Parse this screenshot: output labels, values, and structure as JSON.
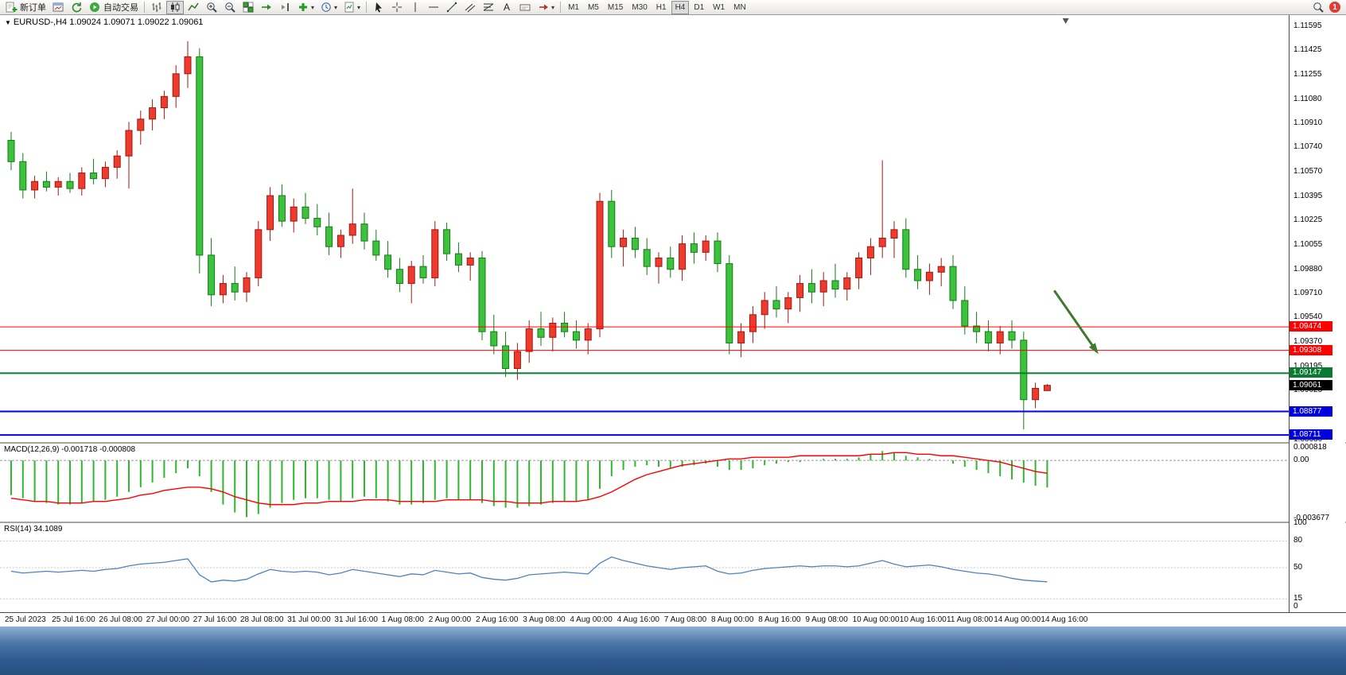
{
  "toolbar": {
    "new_order_label": "新订单",
    "autotrading_label": "自动交易",
    "timeframes": [
      "M1",
      "M5",
      "M15",
      "M30",
      "H1",
      "H4",
      "D1",
      "W1",
      "MN"
    ],
    "active_timeframe": "H4",
    "notification_badge": "1"
  },
  "icons": {
    "symbol_marker": "▼",
    "dropdown_caret": "▾"
  },
  "chart_data": [
    {
      "type": "candlestick",
      "title": "EURUSD-,H4 1.09024 1.09071 1.09022 1.09061",
      "symbol": "EURUSD-",
      "timeframe": "H4",
      "current": {
        "open": 1.09024,
        "high": 1.09071,
        "low": 1.09022,
        "close": 1.09061
      },
      "start_time": "25 Jul 2023 00:00",
      "bar_interval_hours": 4,
      "bull_color": "#ef3a2e",
      "bull_border": "#9e1a10",
      "bear_color": "#3cc23c",
      "bear_border": "#157a15",
      "ylim": [
        1.08661,
        1.11674
      ],
      "y_ticks": [
        "1.11595",
        "1.11425",
        "1.11255",
        "1.11080",
        "1.10910",
        "1.10740",
        "1.10570",
        "1.10395",
        "1.10225",
        "1.10055",
        "1.09880",
        "1.09710",
        "1.09540",
        "1.09370",
        "1.09195",
        "1.09025",
        "1.08855",
        "1.08680"
      ],
      "x_ticks": [
        "25 Jul 2023",
        "25 Jul 16:00",
        "26 Jul 08:00",
        "27 Jul 00:00",
        "27 Jul 16:00",
        "28 Jul 08:00",
        "31 Jul 00:00",
        "31 Jul 16:00",
        "1 Aug 08:00",
        "2 Aug 00:00",
        "2 Aug 16:00",
        "3 Aug 08:00",
        "4 Aug 00:00",
        "4 Aug 16:00",
        "7 Aug 08:00",
        "8 Aug 00:00",
        "8 Aug 16:00",
        "9 Aug 08:00",
        "10 Aug 00:00",
        "10 Aug 16:00",
        "11 Aug 08:00",
        "14 Aug 00:00",
        "14 Aug 16:00"
      ],
      "candles": [
        [
          1.1079,
          1.1085,
          1.1058,
          1.1064
        ],
        [
          1.1064,
          1.107,
          1.1038,
          1.1044
        ],
        [
          1.1044,
          1.1054,
          1.1038,
          1.105
        ],
        [
          1.105,
          1.1057,
          1.1043,
          1.1046
        ],
        [
          1.1046,
          1.1053,
          1.104,
          1.105
        ],
        [
          1.105,
          1.1056,
          1.1042,
          1.1045
        ],
        [
          1.1045,
          1.106,
          1.104,
          1.1056
        ],
        [
          1.1056,
          1.1066,
          1.1048,
          1.1052
        ],
        [
          1.1052,
          1.1064,
          1.1046,
          1.106
        ],
        [
          1.106,
          1.1072,
          1.1052,
          1.1068
        ],
        [
          1.1068,
          1.1092,
          1.1045,
          1.1086
        ],
        [
          1.1086,
          1.11,
          1.1076,
          1.1094
        ],
        [
          1.1094,
          1.1108,
          1.1086,
          1.1102
        ],
        [
          1.1102,
          1.1114,
          1.1094,
          1.111
        ],
        [
          1.111,
          1.1132,
          1.1102,
          1.1126
        ],
        [
          1.1126,
          1.1149,
          1.1116,
          1.1138
        ],
        [
          1.1138,
          1.1144,
          1.0985,
          1.0998
        ],
        [
          1.0998,
          1.101,
          1.0962,
          1.097
        ],
        [
          1.097,
          1.0984,
          1.0964,
          1.0978
        ],
        [
          1.0978,
          1.099,
          1.0966,
          1.0972
        ],
        [
          1.0972,
          1.0986,
          1.0965,
          1.0982
        ],
        [
          1.0982,
          1.1022,
          1.0976,
          1.1016
        ],
        [
          1.1016,
          1.1046,
          1.1008,
          1.104
        ],
        [
          1.104,
          1.1048,
          1.1018,
          1.1022
        ],
        [
          1.1022,
          1.1038,
          1.1014,
          1.1032
        ],
        [
          1.1032,
          1.1042,
          1.102,
          1.1024
        ],
        [
          1.1024,
          1.1034,
          1.1012,
          1.1018
        ],
        [
          1.1018,
          1.1028,
          1.0998,
          1.1004
        ],
        [
          1.1004,
          1.1016,
          1.0996,
          1.1012
        ],
        [
          1.1012,
          1.1045,
          1.1006,
          1.102
        ],
        [
          1.102,
          1.1028,
          1.1002,
          1.1008
        ],
        [
          1.1008,
          1.1016,
          1.0994,
          1.0998
        ],
        [
          1.0998,
          1.1008,
          1.0982,
          1.0988
        ],
        [
          1.0988,
          1.0996,
          1.0972,
          1.0978
        ],
        [
          1.0978,
          1.0994,
          1.0964,
          1.099
        ],
        [
          1.099,
          1.0998,
          1.0978,
          1.0982
        ],
        [
          1.0982,
          1.1022,
          1.0976,
          1.1016
        ],
        [
          1.1016,
          1.1021,
          1.0994,
          1.0999
        ],
        [
          1.0999,
          1.1007,
          1.0986,
          1.0991
        ],
        [
          1.0991,
          1.1,
          1.098,
          1.0996
        ],
        [
          1.0996,
          1.1001,
          1.0938,
          1.0944
        ],
        [
          1.0944,
          1.0956,
          1.0928,
          1.0934
        ],
        [
          1.0934,
          1.0944,
          1.0912,
          1.0918
        ],
        [
          1.0918,
          1.0936,
          1.091,
          1.093
        ],
        [
          1.093,
          1.0952,
          1.0922,
          1.0946
        ],
        [
          1.0946,
          1.0958,
          1.0934,
          1.094
        ],
        [
          1.094,
          1.0954,
          1.093,
          1.095
        ],
        [
          1.095,
          1.0958,
          1.094,
          1.0944
        ],
        [
          1.0944,
          1.0952,
          1.0932,
          1.0938
        ],
        [
          1.0938,
          1.095,
          1.0928,
          1.0946
        ],
        [
          1.0946,
          1.1042,
          1.094,
          1.1036
        ],
        [
          1.1036,
          1.1044,
          1.0996,
          1.1004
        ],
        [
          1.1004,
          1.1016,
          1.099,
          1.101
        ],
        [
          1.101,
          1.1018,
          1.0996,
          1.1002
        ],
        [
          1.1002,
          1.101,
          1.0984,
          1.099
        ],
        [
          1.099,
          1.1,
          1.0978,
          1.0996
        ],
        [
          1.0996,
          1.1004,
          1.0982,
          1.0988
        ],
        [
          1.0988,
          1.1012,
          1.098,
          1.1006
        ],
        [
          1.1006,
          1.1014,
          1.0992,
          1.1
        ],
        [
          1.1,
          1.1012,
          1.0994,
          1.1008
        ],
        [
          1.1008,
          1.1014,
          1.0986,
          1.0992
        ],
        [
          1.0992,
          1.0998,
          1.0928,
          1.0936
        ],
        [
          1.0936,
          1.095,
          1.0926,
          1.0944
        ],
        [
          1.0944,
          1.0962,
          1.0936,
          1.0956
        ],
        [
          1.0956,
          1.0972,
          1.0946,
          1.0966
        ],
        [
          1.0966,
          1.0976,
          1.0954,
          1.096
        ],
        [
          1.096,
          1.0972,
          1.095,
          1.0968
        ],
        [
          1.0968,
          1.0984,
          1.0958,
          1.0978
        ],
        [
          1.0978,
          1.0988,
          1.0964,
          1.0972
        ],
        [
          1.0972,
          1.0986,
          1.0962,
          1.098
        ],
        [
          1.098,
          1.0992,
          1.0968,
          1.0974
        ],
        [
          1.0974,
          1.0986,
          1.0966,
          1.0982
        ],
        [
          1.0982,
          1.1,
          1.0974,
          1.0996
        ],
        [
          1.0996,
          1.101,
          1.0984,
          1.1004
        ],
        [
          1.1004,
          1.1065,
          1.0996,
          1.101
        ],
        [
          1.101,
          1.1022,
          1.0996,
          1.1016
        ],
        [
          1.1016,
          1.1024,
          1.0982,
          1.0988
        ],
        [
          1.0988,
          1.0998,
          1.0974,
          1.098
        ],
        [
          1.098,
          1.0992,
          1.097,
          1.0986
        ],
        [
          1.0986,
          1.0996,
          1.0976,
          1.099
        ],
        [
          1.099,
          1.0998,
          1.096,
          1.0966
        ],
        [
          1.0966,
          1.0976,
          1.0942,
          1.0948
        ],
        [
          1.0948,
          1.0958,
          1.0936,
          1.0944
        ],
        [
          1.0944,
          1.0952,
          1.093,
          1.0936
        ],
        [
          1.0936,
          1.0948,
          1.0928,
          1.0944
        ],
        [
          1.0944,
          1.0952,
          1.0932,
          1.0938
        ],
        [
          1.0938,
          1.0944,
          1.0875,
          1.0896
        ],
        [
          1.0896,
          1.0908,
          1.089,
          1.0904
        ],
        [
          1.09024,
          1.09071,
          1.09022,
          1.09061
        ]
      ],
      "hlines": [
        {
          "price": 1.09474,
          "color": "#ff0000",
          "width": 1
        },
        {
          "price": 1.09308,
          "color": "#ff0000",
          "width": 1
        },
        {
          "price": 1.09147,
          "color": "#0a7a32",
          "width": 2
        },
        {
          "price": 1.08877,
          "color": "#0000ee",
          "width": 2
        },
        {
          "price": 1.08711,
          "color": "#0000ee",
          "width": 2
        }
      ],
      "price_tags": [
        {
          "price": 1.09474,
          "label": "1.09474",
          "bg": "#ff0000"
        },
        {
          "price": 1.09308,
          "label": "1.09308",
          "bg": "#ff0000"
        },
        {
          "price": 1.09147,
          "label": "1.09147",
          "bg": "#0a7a32"
        },
        {
          "price": 1.09061,
          "label": "1.09061",
          "bg": "#000000"
        },
        {
          "price": 1.08877,
          "label": "1.08877",
          "bg": "#0000dd"
        },
        {
          "price": 1.08711,
          "label": "1.08711",
          "bg": "#0000dd"
        }
      ],
      "arrow": {
        "from_bar": 88.6,
        "from_price": 1.0973,
        "to_bar": 92.2,
        "to_price": 1.093,
        "color": "#3f7a2e"
      }
    },
    {
      "type": "bar",
      "name": "MACD(12,26,9)",
      "label": "MACD(12,26,9) -0.001718 -0.000808",
      "main_value": -0.001718,
      "signal_value": -0.000808,
      "ylim": [
        -0.00388,
        0.00107
      ],
      "y_ticks": [
        {
          "value": 0.000818,
          "label": "0.000818"
        },
        {
          "value": 0,
          "label": "0.00"
        },
        {
          "value": -0.003677,
          "label": "-0.003677"
        }
      ],
      "hist_color": "#2db82d",
      "signal_color": "#ff0000",
      "hist": [
        -0.0022,
        -0.0024,
        -0.0026,
        -0.0027,
        -0.0028,
        -0.0028,
        -0.0027,
        -0.0026,
        -0.0025,
        -0.0023,
        -0.002,
        -0.0017,
        -0.0014,
        -0.0011,
        -0.0008,
        -0.0005,
        -0.001,
        -0.002,
        -0.0028,
        -0.0033,
        -0.0036,
        -0.0034,
        -0.003,
        -0.0027,
        -0.0025,
        -0.0024,
        -0.0024,
        -0.0025,
        -0.0026,
        -0.0024,
        -0.0023,
        -0.0024,
        -0.0026,
        -0.0028,
        -0.0028,
        -0.0027,
        -0.0025,
        -0.0024,
        -0.0025,
        -0.0025,
        -0.0027,
        -0.0029,
        -0.003,
        -0.003,
        -0.0029,
        -0.0028,
        -0.0027,
        -0.0026,
        -0.0026,
        -0.0025,
        -0.0018,
        -0.001,
        -0.0006,
        -0.0004,
        -0.0003,
        -0.0004,
        -0.0005,
        -0.0004,
        -0.0003,
        -0.0002,
        -0.0004,
        -0.0006,
        -0.0006,
        -0.0005,
        -0.0003,
        -0.0002,
        -0.0001,
        -0.0001,
        0.0,
        0.0001,
        0.0001,
        0.0001,
        0.0002,
        0.0004,
        0.0006,
        0.0005,
        0.0003,
        0.0002,
        0.0001,
        0.0,
        -0.0002,
        -0.0004,
        -0.0006,
        -0.0008,
        -0.001,
        -0.0012,
        -0.0014,
        -0.0016,
        -0.001718
      ],
      "signal": [
        -0.0024,
        -0.0025,
        -0.0026,
        -0.0026,
        -0.0027,
        -0.0027,
        -0.0027,
        -0.0026,
        -0.0026,
        -0.0025,
        -0.0024,
        -0.0022,
        -0.0021,
        -0.0019,
        -0.0018,
        -0.0017,
        -0.0017,
        -0.0018,
        -0.002,
        -0.0023,
        -0.0025,
        -0.0027,
        -0.0028,
        -0.0028,
        -0.0028,
        -0.0027,
        -0.0027,
        -0.0026,
        -0.0026,
        -0.0026,
        -0.0025,
        -0.0025,
        -0.0025,
        -0.0026,
        -0.0026,
        -0.0026,
        -0.0026,
        -0.0025,
        -0.0025,
        -0.0025,
        -0.0025,
        -0.0026,
        -0.0026,
        -0.0027,
        -0.0027,
        -0.0027,
        -0.0026,
        -0.0026,
        -0.0026,
        -0.0025,
        -0.0023,
        -0.002,
        -0.0016,
        -0.0012,
        -0.0009,
        -0.0007,
        -0.0005,
        -0.0003,
        -0.0002,
        -0.0001,
        0.0,
        0.0001,
        0.0001,
        0.0002,
        0.0002,
        0.0002,
        0.0002,
        0.0003,
        0.0003,
        0.0003,
        0.0003,
        0.0003,
        0.0003,
        0.0004,
        0.0004,
        0.0005,
        0.0005,
        0.0004,
        0.0004,
        0.0003,
        0.0003,
        0.0002,
        0.0001,
        0.0,
        -0.0001,
        -0.0003,
        -0.0005,
        -0.0007,
        -0.000808
      ]
    },
    {
      "type": "line",
      "name": "RSI(14)",
      "label": "RSI(14) 34.1089",
      "value": 34.1089,
      "ylim": [
        0,
        100
      ],
      "y_ticks": [
        100,
        80,
        50,
        15,
        0
      ],
      "levels": [
        80,
        50,
        15
      ],
      "line_color": "#4f81bd",
      "values": [
        46,
        44,
        45,
        46,
        45,
        46,
        47,
        46,
        48,
        49,
        52,
        54,
        55,
        56,
        58,
        60,
        42,
        34,
        36,
        35,
        37,
        43,
        48,
        46,
        45,
        46,
        45,
        42,
        44,
        48,
        46,
        44,
        42,
        40,
        43,
        42,
        47,
        45,
        43,
        44,
        39,
        37,
        36,
        38,
        42,
        43,
        44,
        45,
        44,
        43,
        55,
        62,
        58,
        55,
        52,
        50,
        48,
        50,
        51,
        52,
        46,
        43,
        44,
        47,
        49,
        50,
        51,
        52,
        51,
        52,
        52,
        51,
        52,
        55,
        58,
        54,
        51,
        52,
        53,
        51,
        48,
        46,
        44,
        43,
        41,
        38,
        36,
        35,
        34.11
      ]
    }
  ]
}
